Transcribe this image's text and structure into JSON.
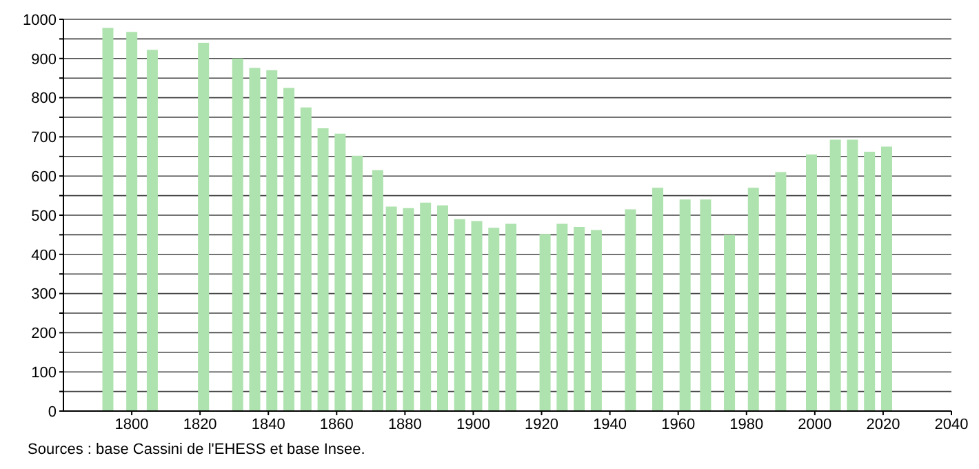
{
  "chart_data": {
    "type": "bar",
    "x": [
      1793,
      1800,
      1806,
      1821,
      1831,
      1836,
      1841,
      1846,
      1851,
      1856,
      1861,
      1866,
      1872,
      1876,
      1881,
      1886,
      1891,
      1896,
      1901,
      1906,
      1911,
      1921,
      1926,
      1931,
      1936,
      1946,
      1954,
      1962,
      1968,
      1975,
      1982,
      1990,
      1999,
      2006,
      2011,
      2016,
      2021
    ],
    "values": [
      978,
      968,
      922,
      940,
      900,
      876,
      870,
      825,
      775,
      722,
      708,
      652,
      615,
      522,
      518,
      532,
      525,
      490,
      485,
      468,
      478,
      452,
      478,
      470,
      462,
      515,
      570,
      540,
      540,
      450,
      570,
      610,
      655,
      693,
      693,
      662,
      675
    ],
    "color": "#aee2ae",
    "xlim": [
      1780,
      2040
    ],
    "xticks": [
      1800,
      1820,
      1840,
      1860,
      1880,
      1900,
      1920,
      1940,
      1960,
      1980,
      2000,
      2020,
      2040
    ],
    "ylim": [
      0,
      1000
    ],
    "yticks": [
      0,
      {
        "value": 50,
        "label": null
      },
      100,
      {
        "value": 150,
        "label": null
      },
      200,
      {
        "value": 250,
        "label": null
      },
      300,
      {
        "value": 350,
        "label": null
      },
      400,
      {
        "value": 450,
        "label": null
      },
      500,
      {
        "value": 550,
        "label": null
      },
      600,
      {
        "value": 650,
        "label": null
      },
      700,
      {
        "value": 750,
        "label": null
      },
      800,
      {
        "value": 850,
        "label": null
      },
      900,
      {
        "value": 950,
        "label": null
      },
      1000
    ],
    "grid": "y",
    "annotations": [
      "Sources : base Cassini de l'EHESS et base Insee."
    ]
  }
}
